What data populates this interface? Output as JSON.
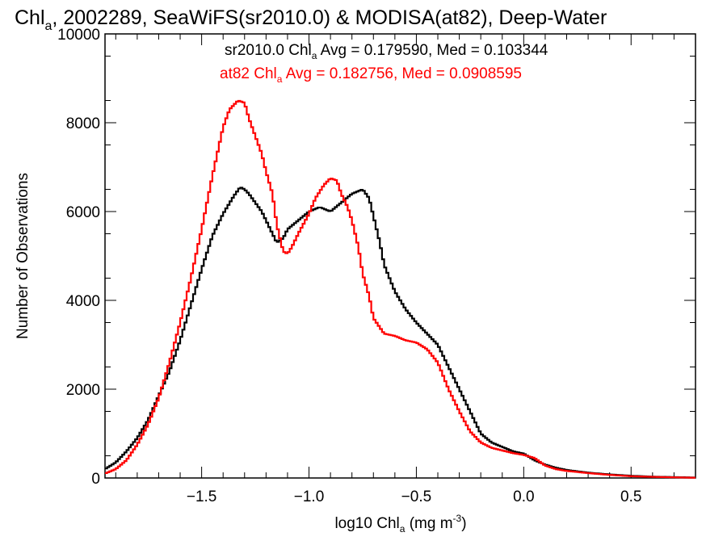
{
  "chart_data": {
    "type": "line",
    "title": {
      "prefix": "Chl",
      "sub": "a",
      "rest": ", 2002289, SeaWiFS(sr2010.0) & MODISA(at82), Deep-Water"
    },
    "xlabel": {
      "prefix": "log10 Chl",
      "sub": "a",
      "mid": " (mg m",
      "sup": "-3",
      "suffix": ")"
    },
    "ylabel": "Number of Observations",
    "xlim": [
      -1.95,
      0.8
    ],
    "ylim": [
      0,
      10000
    ],
    "xticks": [
      {
        "value": -1.5,
        "label": "−1.5"
      },
      {
        "value": -1.0,
        "label": "−1.0"
      },
      {
        "value": -0.5,
        "label": "−0.5"
      },
      {
        "value": 0.0,
        "label": "0.0"
      },
      {
        "value": 0.5,
        "label": "0.5"
      }
    ],
    "yticks": [
      {
        "value": 0,
        "label": "0"
      },
      {
        "value": 2000,
        "label": "2000"
      },
      {
        "value": 4000,
        "label": "4000"
      },
      {
        "value": 6000,
        "label": "6000"
      },
      {
        "value": 8000,
        "label": "8000"
      },
      {
        "value": 10000,
        "label": "10000"
      }
    ],
    "series": [
      {
        "color": "#000000",
        "label": {
          "prefix": "sr2010.0 Chl",
          "sub": "a",
          "rest": " Avg = 0.179590, Med = 0.103344"
        },
        "x": [
          -1.95,
          -1.9,
          -1.85,
          -1.8,
          -1.75,
          -1.7,
          -1.65,
          -1.6,
          -1.55,
          -1.5,
          -1.45,
          -1.4,
          -1.35,
          -1.32,
          -1.3,
          -1.28,
          -1.25,
          -1.22,
          -1.2,
          -1.17,
          -1.15,
          -1.12,
          -1.1,
          -1.05,
          -1.0,
          -0.95,
          -0.9,
          -0.85,
          -0.8,
          -0.75,
          -0.72,
          -0.7,
          -0.67,
          -0.65,
          -0.6,
          -0.55,
          -0.5,
          -0.45,
          -0.4,
          -0.35,
          -0.3,
          -0.25,
          -0.2,
          -0.15,
          -0.1,
          -0.05,
          0.0,
          0.05,
          0.1,
          0.15,
          0.2,
          0.3,
          0.4,
          0.5,
          0.6,
          0.7,
          0.8
        ],
        "y": [
          200,
          350,
          600,
          900,
          1300,
          1850,
          2400,
          3100,
          3900,
          4700,
          5450,
          5950,
          6350,
          6550,
          6500,
          6400,
          6200,
          6000,
          5800,
          5500,
          5300,
          5400,
          5600,
          5800,
          6000,
          6100,
          6000,
          6200,
          6400,
          6500,
          6300,
          5900,
          5300,
          4800,
          4200,
          3800,
          3500,
          3250,
          3000,
          2500,
          2000,
          1500,
          1000,
          800,
          700,
          600,
          550,
          400,
          300,
          230,
          180,
          120,
          80,
          50,
          30,
          20,
          10
        ]
      },
      {
        "color": "#ff0000",
        "label": {
          "prefix": "at82 Chl",
          "sub": "a",
          "rest": " Avg = 0.182756, Med = 0.0908595"
        },
        "x": [
          -1.95,
          -1.9,
          -1.85,
          -1.8,
          -1.75,
          -1.7,
          -1.65,
          -1.6,
          -1.55,
          -1.5,
          -1.45,
          -1.4,
          -1.37,
          -1.33,
          -1.3,
          -1.28,
          -1.25,
          -1.22,
          -1.2,
          -1.17,
          -1.15,
          -1.12,
          -1.1,
          -1.08,
          -1.05,
          -1.0,
          -0.97,
          -0.93,
          -0.9,
          -0.87,
          -0.85,
          -0.82,
          -0.8,
          -0.77,
          -0.75,
          -0.72,
          -0.7,
          -0.65,
          -0.6,
          -0.55,
          -0.5,
          -0.45,
          -0.4,
          -0.35,
          -0.3,
          -0.25,
          -0.2,
          -0.15,
          -0.1,
          -0.05,
          0.0,
          0.05,
          0.1,
          0.15,
          0.2,
          0.3,
          0.4,
          0.5,
          0.6,
          0.7,
          0.8
        ],
        "y": [
          100,
          200,
          400,
          750,
          1200,
          1800,
          2600,
          3500,
          4500,
          5600,
          6800,
          7900,
          8300,
          8500,
          8450,
          8100,
          7700,
          7300,
          6900,
          6400,
          5700,
          5100,
          5050,
          5200,
          5500,
          5950,
          6300,
          6600,
          6750,
          6700,
          6400,
          6100,
          5800,
          5200,
          4600,
          4100,
          3600,
          3250,
          3200,
          3100,
          3050,
          2900,
          2600,
          2000,
          1500,
          1050,
          800,
          680,
          620,
          560,
          520,
          450,
          280,
          200,
          160,
          110,
          70,
          40,
          25,
          15,
          5
        ]
      }
    ]
  }
}
